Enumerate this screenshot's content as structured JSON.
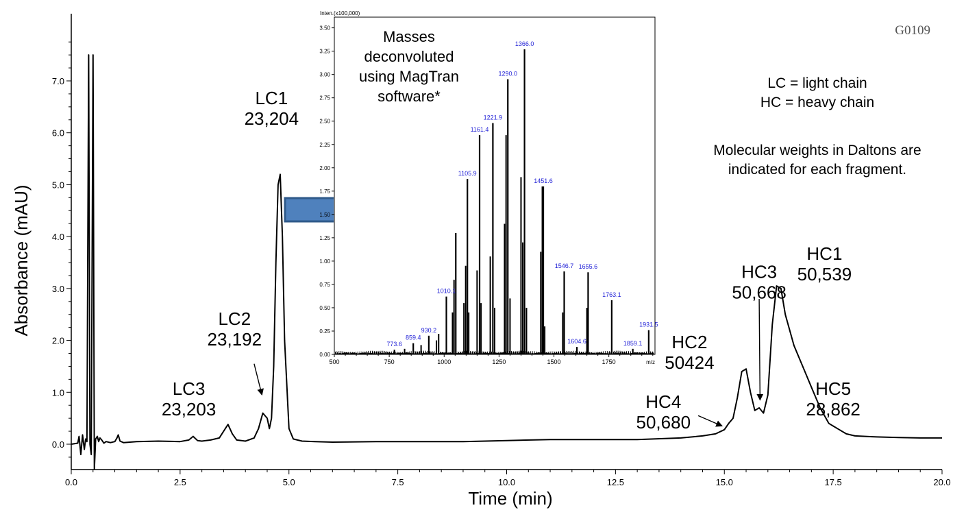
{
  "code": "G0109",
  "legend": {
    "lc_def": "LC = light chain",
    "hc_def": "HC = heavy chain",
    "mw_line1": "Molecular weights in Daltons are",
    "mw_line2": "indicated for each fragment."
  },
  "inset_note": [
    "Masses",
    "deconvoluted",
    "using MagTran",
    "software*"
  ],
  "chart_data": [
    {
      "type": "line",
      "xlabel": "Time (min)",
      "ylabel": "Absorbance (mAU)",
      "xlim": [
        0,
        20
      ],
      "ylim": [
        -0.5,
        8.0
      ],
      "xticks": [
        "0.0",
        "2.5",
        "5.0",
        "7.5",
        "10.0",
        "12.5",
        "15.0",
        "17.5",
        "20.0"
      ],
      "yticks": [
        "0.0",
        "1.0",
        "2.0",
        "3.0",
        "4.0",
        "5.0",
        "6.0",
        "7.0"
      ],
      "grid": false,
      "annotations": [
        {
          "label": "LC1",
          "mass": "23,204"
        },
        {
          "label": "LC2",
          "mass": "23,192"
        },
        {
          "label": "LC3",
          "mass": "23,203"
        },
        {
          "label": "HC1",
          "mass": "50,539"
        },
        {
          "label": "HC2",
          "mass": "50424"
        },
        {
          "label": "HC3",
          "mass": "50,668"
        },
        {
          "label": "HC4",
          "mass": "50,680"
        },
        {
          "label": "HC5",
          "mass": "28,862"
        }
      ],
      "series": [
        {
          "x": [
            0.0,
            0.15,
            0.18,
            0.22,
            0.26,
            0.3,
            0.33,
            0.36,
            0.4,
            0.43,
            0.46,
            0.5,
            0.53,
            0.56,
            0.6,
            0.63,
            0.66,
            0.7,
            0.75,
            0.8,
            0.9,
            1.0,
            1.05,
            1.08,
            1.12,
            1.2,
            1.5,
            2.0,
            2.5,
            2.7,
            2.8,
            2.9,
            3.0,
            3.2,
            3.4,
            3.5,
            3.6,
            3.7,
            3.8,
            4.0,
            4.2,
            4.3,
            4.4,
            4.5,
            4.55,
            4.6,
            4.65,
            4.7,
            4.75,
            4.8,
            4.85,
            4.9,
            5.0,
            5.1,
            5.3,
            5.6,
            6.0,
            7.0,
            8.0,
            9.0,
            10.0,
            11.0,
            12.0,
            13.0,
            14.0,
            14.5,
            14.8,
            15.0,
            15.1,
            15.2,
            15.3,
            15.4,
            15.5,
            15.6,
            15.7,
            15.8,
            15.9,
            16.0,
            16.1,
            16.2,
            16.3,
            16.4,
            16.6,
            16.8,
            17.0,
            17.2,
            17.4,
            17.5,
            17.6,
            17.8,
            18.0,
            18.5,
            19.0,
            19.5,
            20.0
          ],
          "y": [
            0.0,
            0.02,
            0.15,
            -0.2,
            0.18,
            -0.1,
            0.1,
            0.05,
            7.5,
            0.0,
            -0.2,
            7.5,
            -0.5,
            0.1,
            0.15,
            0.05,
            0.12,
            0.08,
            0.02,
            0.05,
            0.03,
            0.05,
            0.12,
            0.18,
            0.06,
            0.03,
            0.05,
            0.06,
            0.05,
            0.08,
            0.15,
            0.07,
            0.06,
            0.08,
            0.12,
            0.25,
            0.38,
            0.2,
            0.08,
            0.06,
            0.12,
            0.3,
            0.6,
            0.5,
            0.3,
            0.5,
            1.5,
            3.5,
            5.0,
            5.2,
            4.0,
            2.0,
            0.3,
            0.1,
            0.06,
            0.05,
            0.04,
            0.05,
            0.05,
            0.05,
            0.07,
            0.09,
            0.09,
            0.09,
            0.12,
            0.16,
            0.2,
            0.28,
            0.4,
            0.5,
            0.9,
            1.4,
            1.45,
            1.0,
            0.65,
            0.7,
            0.6,
            0.95,
            2.3,
            3.05,
            3.0,
            2.5,
            1.9,
            1.5,
            1.1,
            0.7,
            0.4,
            0.35,
            0.3,
            0.2,
            0.16,
            0.14,
            0.13,
            0.12,
            0.12
          ]
        }
      ]
    },
    {
      "type": "bar",
      "ylabel": "Inten.(x100,000)",
      "xlabel": "m/z",
      "xlim": [
        500,
        1960
      ],
      "ylim": [
        0,
        3.6
      ],
      "xticks": [
        "500",
        "750",
        "1000",
        "1250",
        "1500",
        "1750"
      ],
      "yticks": [
        "0.00",
        "0.25",
        "0.50",
        "0.75",
        "1.00",
        "1.25",
        "1.50",
        "1.75",
        "2.00",
        "2.25",
        "2.50",
        "2.75",
        "3.00",
        "3.25",
        "3.50"
      ],
      "grid": false,
      "labels": [
        "773.6",
        "859.4",
        "930.2",
        "1010.1",
        "1105.9",
        "1161.4",
        "1221.9",
        "1290.0",
        "1366.0",
        "1451.6",
        "1546.7",
        "1604.6",
        "1655.6",
        "1763.1",
        "1859.1",
        "1931.5"
      ],
      "x": [
        773.6,
        859.4,
        930.2,
        1010.1,
        1053.0,
        1105.9,
        1161.4,
        1221.9,
        1290.0,
        1366.0,
        1451.6,
        1546.7,
        1604.6,
        1655.6,
        1763.1,
        1859.1,
        1931.5
      ],
      "values": [
        0.05,
        0.12,
        0.2,
        0.62,
        1.3,
        1.88,
        2.35,
        2.48,
        2.95,
        3.27,
        1.8,
        0.89,
        0.08,
        0.88,
        0.58,
        0.06,
        0.26
      ],
      "minor_x": [
        820,
        895,
        965,
        975,
        1038,
        1045,
        1090,
        1098,
        1112,
        1150,
        1168,
        1210,
        1230,
        1275,
        1282,
        1300,
        1350,
        1358,
        1375,
        1440,
        1447,
        1458,
        1540,
        1650
      ],
      "minor_values": [
        0.06,
        0.1,
        0.15,
        0.22,
        0.45,
        0.8,
        0.55,
        0.95,
        0.45,
        0.9,
        0.55,
        1.05,
        0.5,
        1.4,
        2.35,
        0.6,
        1.9,
        1.2,
        0.5,
        1.1,
        1.8,
        0.3,
        0.45,
        0.5
      ]
    }
  ]
}
